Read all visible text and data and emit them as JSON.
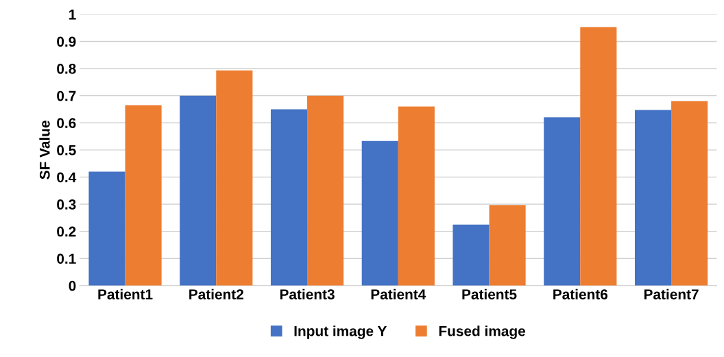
{
  "chart_data": {
    "type": "bar",
    "ylabel": "SF Value",
    "categories": [
      "Patient1",
      "Patient2",
      "Patient3",
      "Patient4",
      "Patient5",
      "Patient6",
      "Patient7"
    ],
    "series": [
      {
        "name": "Input image Y",
        "color": "#4472c4",
        "values": [
          0.42,
          0.7,
          0.65,
          0.533,
          0.225,
          0.62,
          0.647
        ]
      },
      {
        "name": "Fused image",
        "color": "#ed7d31",
        "values": [
          0.665,
          0.793,
          0.7,
          0.66,
          0.297,
          0.953,
          0.68
        ]
      }
    ],
    "ylim": [
      0,
      1
    ],
    "yticks": [
      0,
      0.1,
      0.2,
      0.3,
      0.4,
      0.5,
      0.6,
      0.7,
      0.8,
      0.9,
      1
    ],
    "grid": "y",
    "legend": "bottom"
  }
}
